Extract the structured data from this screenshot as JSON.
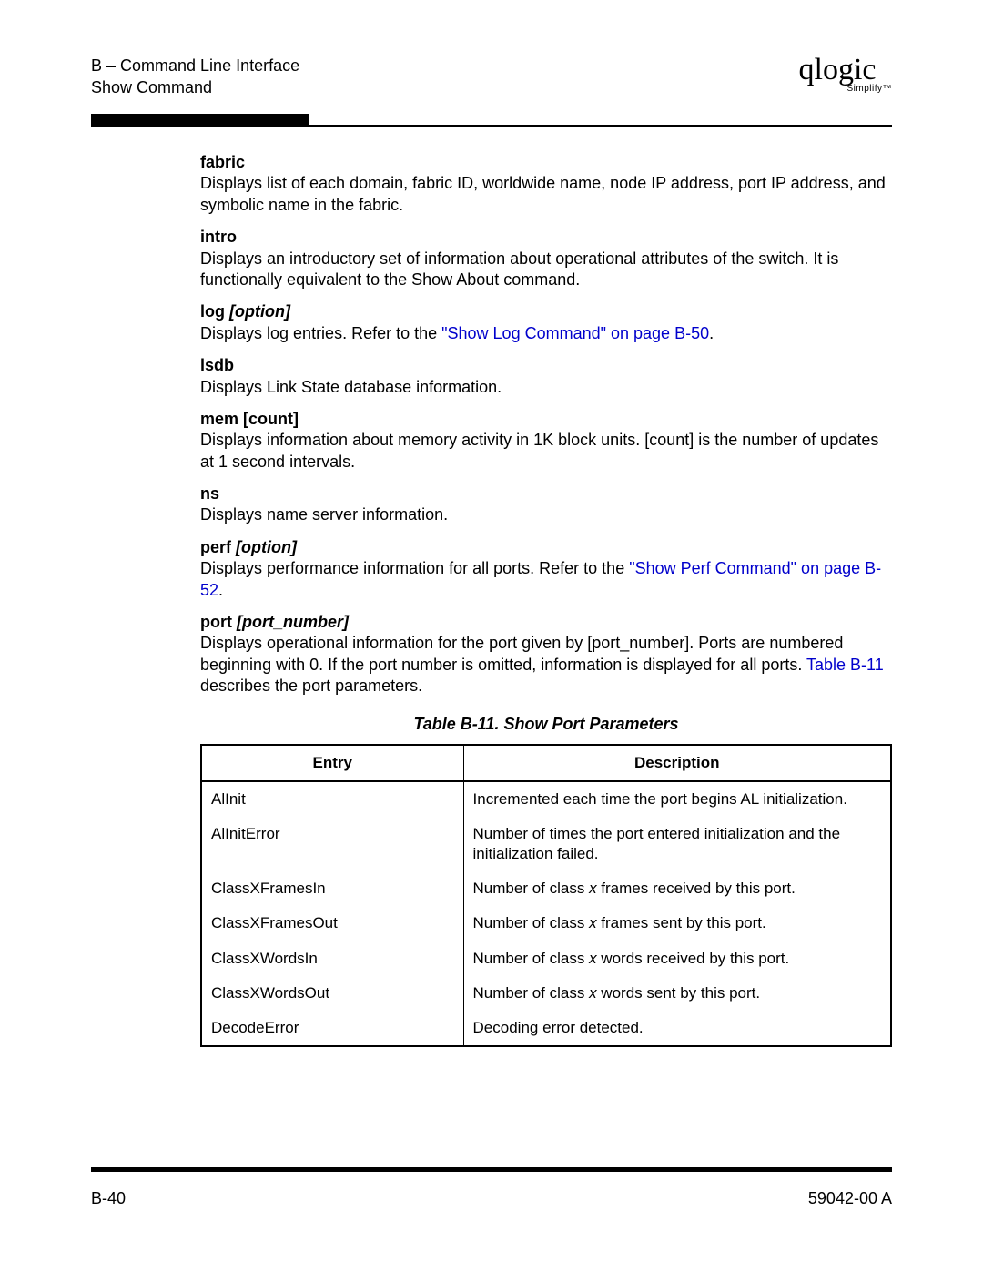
{
  "header": {
    "section": "B – Command Line Interface",
    "subsection": "Show Command",
    "logo_text": "qlogic",
    "logo_sub": "Simplify™"
  },
  "entries": [
    {
      "title_bold": "fabric",
      "title_ital": "",
      "body_parts": [
        {
          "t": "text",
          "v": "Displays list of each domain, fabric ID, worldwide name, node IP address, port IP address, and symbolic name in the fabric."
        }
      ]
    },
    {
      "title_bold": "intro",
      "title_ital": "",
      "body_parts": [
        {
          "t": "text",
          "v": "Displays an introductory set of information about operational attributes of the switch. It is functionally equivalent to the Show About command."
        }
      ]
    },
    {
      "title_bold": "log ",
      "title_ital": "[option]",
      "body_parts": [
        {
          "t": "text",
          "v": "Displays log entries. Refer to the "
        },
        {
          "t": "link",
          "v": "\"Show Log Command\" on page B-50"
        },
        {
          "t": "text",
          "v": "."
        }
      ]
    },
    {
      "title_bold": "lsdb",
      "title_ital": "",
      "body_parts": [
        {
          "t": "text",
          "v": "Displays Link State database information."
        }
      ]
    },
    {
      "title_bold": "mem [count]",
      "title_ital": "",
      "body_parts": [
        {
          "t": "text",
          "v": "Displays information about memory activity in 1K block units. [count] is the number of updates at 1 second intervals."
        }
      ]
    },
    {
      "title_bold": "ns",
      "title_ital": "",
      "body_parts": [
        {
          "t": "text",
          "v": "Displays name server information."
        }
      ]
    },
    {
      "title_bold": "perf ",
      "title_ital": "[option]",
      "body_parts": [
        {
          "t": "text",
          "v": "Displays performance information for all ports. Refer to the "
        },
        {
          "t": "link",
          "v": "\"Show Perf Command\" on page B-52"
        },
        {
          "t": "text",
          "v": "."
        }
      ]
    },
    {
      "title_bold": "port ",
      "title_ital": "[port_number]",
      "body_parts": [
        {
          "t": "text",
          "v": "Displays operational information for the port given by [port_number]. Ports are numbered beginning with 0. If the port number is omitted, information is displayed for all ports. "
        },
        {
          "t": "link",
          "v": "Table B-11"
        },
        {
          "t": "text",
          "v": " describes the port parameters."
        }
      ]
    }
  ],
  "table": {
    "caption": "Table B-11. Show Port Parameters",
    "head_entry": "Entry",
    "head_desc": "Description",
    "col1_width_pct": 38,
    "rows": [
      {
        "entry": "AlInit",
        "desc_parts": [
          {
            "t": "text",
            "v": "Incremented each time the port begins AL initialization."
          }
        ]
      },
      {
        "entry": "AlInitError",
        "desc_parts": [
          {
            "t": "text",
            "v": "Number of times the port entered initialization and the initialization failed."
          }
        ]
      },
      {
        "entry": "ClassXFramesIn",
        "desc_parts": [
          {
            "t": "text",
            "v": "Number of class "
          },
          {
            "t": "x",
            "v": "x"
          },
          {
            "t": "text",
            "v": " frames received by this port."
          }
        ]
      },
      {
        "entry": "ClassXFramesOut",
        "desc_parts": [
          {
            "t": "text",
            "v": "Number of class "
          },
          {
            "t": "x",
            "v": "x"
          },
          {
            "t": "text",
            "v": " frames sent by this port."
          }
        ]
      },
      {
        "entry": "ClassXWordsIn",
        "desc_parts": [
          {
            "t": "text",
            "v": "Number of class "
          },
          {
            "t": "x",
            "v": "x"
          },
          {
            "t": "text",
            "v": " words received by this port."
          }
        ]
      },
      {
        "entry": "ClassXWordsOut",
        "desc_parts": [
          {
            "t": "text",
            "v": "Number of class "
          },
          {
            "t": "x",
            "v": "x"
          },
          {
            "t": "text",
            "v": " words sent by this port."
          }
        ]
      },
      {
        "entry": "DecodeError",
        "desc_parts": [
          {
            "t": "text",
            "v": "Decoding error detected."
          }
        ]
      }
    ]
  },
  "footer": {
    "page": "B-40",
    "docnum": "59042-00  A"
  },
  "colors": {
    "link": "#0000cc",
    "text": "#000000",
    "background": "#ffffff"
  }
}
